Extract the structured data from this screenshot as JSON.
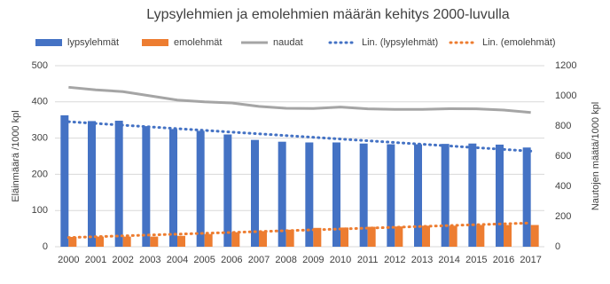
{
  "chart_data": {
    "type": "bar",
    "title": "Lypsylehmien ja emolehmien määrän kehitys 2000-luvulla",
    "y_label": "Eläinmäärä /1000 kpl",
    "y2_label": "Nautojen määtä/1000 kpl",
    "categories": [
      "2000",
      "2001",
      "2002",
      "2003",
      "2004",
      "2005",
      "2006",
      "2007",
      "2008",
      "2009",
      "2010",
      "2011",
      "2012",
      "2013",
      "2014",
      "2015",
      "2016",
      "2017"
    ],
    "series": [
      {
        "name": "lypsylehmät",
        "kind": "bar",
        "color": "#4472c4",
        "values": [
          363,
          347,
          348,
          333,
          325,
          320,
          310,
          295,
          290,
          288,
          288,
          285,
          283,
          283,
          284,
          285,
          282,
          274
        ]
      },
      {
        "name": "emolehmät",
        "kind": "bar",
        "color": "#ed7d31",
        "values": [
          27,
          28,
          28,
          28,
          30,
          35,
          40,
          43,
          47,
          52,
          53,
          55,
          56,
          58,
          58,
          60,
          60,
          60
        ]
      },
      {
        "name": "naudat",
        "kind": "line",
        "axis": "y2",
        "color": "#a5a5a5",
        "values": [
          1057,
          1040,
          1028,
          1000,
          972,
          960,
          953,
          930,
          918,
          916,
          926,
          914,
          910,
          910,
          915,
          914,
          906,
          890
        ]
      },
      {
        "name": "Lin. (lypsylehmät)",
        "kind": "trend",
        "source": 0,
        "color": "#4472c4"
      },
      {
        "name": "Lin. (emolehmät)",
        "kind": "trend",
        "source": 1,
        "color": "#ed7d31"
      }
    ],
    "ylim": [
      0,
      500
    ],
    "yticks": [
      0,
      100,
      200,
      300,
      400,
      500
    ],
    "y2lim": [
      0,
      1200
    ],
    "y2ticks": [
      0,
      200,
      400,
      600,
      800,
      1000,
      1200
    ],
    "grid": true
  }
}
